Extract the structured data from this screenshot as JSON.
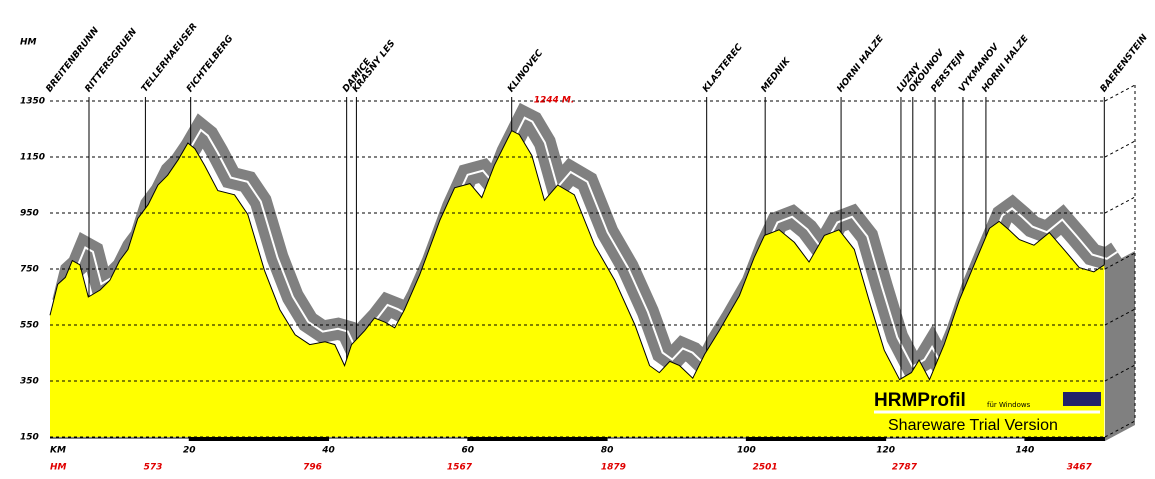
{
  "chart_data": {
    "type": "area",
    "y_label": "HM",
    "x_label": "KM",
    "color": "#ffff00",
    "shadow_color": "#808080",
    "xlim": [
      0,
      151.5
    ],
    "ylim": [
      150,
      1350
    ],
    "xticks": [
      20,
      40,
      60,
      80,
      100,
      120,
      140
    ],
    "yticks": [
      1350,
      1150,
      950,
      750,
      550,
      350,
      150
    ],
    "grid": true,
    "x": [
      0,
      1.1,
      2.2,
      3.2,
      4.3,
      5.5,
      7.2,
      8.6,
      10.0,
      11.2,
      12.6,
      14.1,
      15.5,
      16.9,
      18.4,
      19.8,
      20.8,
      22.2,
      24.1,
      26.5,
      28.4,
      30.8,
      33.0,
      35.2,
      37.3,
      39.5,
      40.9,
      42.3,
      43.3,
      45.2,
      46.6,
      48.1,
      49.5,
      50.9,
      53.1,
      56.0,
      58.1,
      60.3,
      62.0,
      63.8,
      66.3,
      67.4,
      69.2,
      71.0,
      72.9,
      75.3,
      78.2,
      81.1,
      84.0,
      86.1,
      87.5,
      89.0,
      90.4,
      92.3,
      94.0,
      96.1,
      99.0,
      101.1,
      102.6,
      104.7,
      106.9,
      109.0,
      111.2,
      113.3,
      115.5,
      117.6,
      119.8,
      122.0,
      123.7,
      124.8,
      126.3,
      128.4,
      130.6,
      132.7,
      134.9,
      136.3,
      137.7,
      139.2,
      141.3,
      143.5,
      145.6,
      147.8,
      149.9,
      151.4
    ],
    "values": [
      585,
      695,
      720,
      780,
      765,
      650,
      675,
      710,
      780,
      820,
      930,
      980,
      1050,
      1085,
      1140,
      1200,
      1180,
      1120,
      1030,
      1015,
      945,
      745,
      605,
      515,
      480,
      490,
      480,
      405,
      480,
      530,
      575,
      560,
      540,
      605,
      730,
      925,
      1040,
      1055,
      1005,
      1120,
      1244,
      1230,
      1155,
      995,
      1050,
      1015,
      835,
      710,
      550,
      405,
      380,
      420,
      405,
      360,
      445,
      530,
      655,
      790,
      870,
      890,
      845,
      775,
      870,
      890,
      820,
      640,
      460,
      355,
      380,
      425,
      355,
      480,
      640,
      765,
      895,
      920,
      890,
      855,
      835,
      880,
      820,
      755,
      740,
      765
    ],
    "places": [
      {
        "name": "BREITENBRUNN",
        "km": 0
      },
      {
        "name": "RITTERSGRUEN",
        "km": 5.6
      },
      {
        "name": "TELLERHAEUSER",
        "km": 13.7
      },
      {
        "name": "FICHTELBERG",
        "km": 20.2
      },
      {
        "name": "DAMICE",
        "km": 42.6
      },
      {
        "name": "KRASNY LES",
        "km": 44.0
      },
      {
        "name": "KLINOVEC",
        "km": 66.3
      },
      {
        "name": "KLASTEREC",
        "km": 94.3
      },
      {
        "name": "MEDNIK",
        "km": 102.7
      },
      {
        "name": "HORNI HALZE",
        "km": 113.6
      },
      {
        "name": "LUZNY",
        "km": 122.2
      },
      {
        "name": "OKOUNOV",
        "km": 123.9
      },
      {
        "name": "PERSTEJN",
        "km": 127.1
      },
      {
        "name": "VYKMANOV",
        "km": 131.1
      },
      {
        "name": "HORNI HALZE",
        "km": 134.4
      },
      {
        "name": "BAERENSTEIN",
        "km": 151.4
      }
    ],
    "annotation": {
      "text": "1244 M.",
      "km": 66.3
    },
    "ascent": {
      "label": "HM",
      "items": [
        {
          "km": 14.8,
          "value": 573
        },
        {
          "km": 37.7,
          "value": 796
        },
        {
          "km": 58.8,
          "value": 1567
        },
        {
          "km": 80.9,
          "value": 1879
        },
        {
          "km": 102.7,
          "value": 2501
        },
        {
          "km": 122.7,
          "value": 2787
        },
        {
          "km": 147.8,
          "value": 3467
        }
      ]
    },
    "logo": {
      "name": "HRMProfil",
      "sub": "für Windows",
      "note": "Shareware Trial  Version"
    }
  }
}
